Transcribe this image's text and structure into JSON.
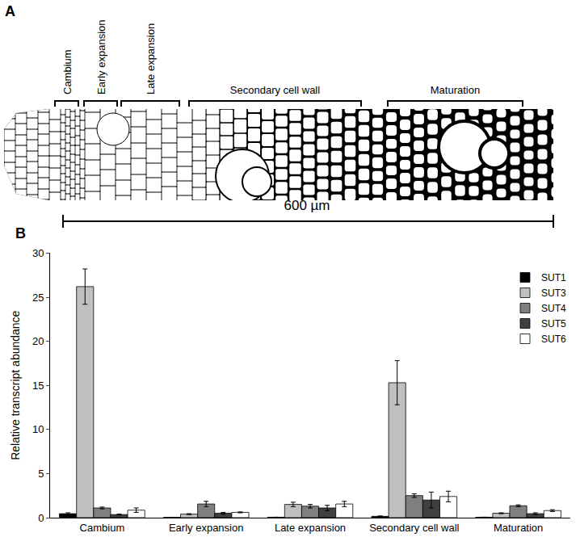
{
  "diagram": {
    "panel_label": "A",
    "zones": [
      "Cambium",
      "Early expansion",
      "Late expansion",
      "Secondary cell wall",
      "Maturation"
    ],
    "scale_bar": "600 µm"
  },
  "chart_data": {
    "panel_label": "B",
    "type": "bar",
    "categories": [
      "Cambium",
      "Early expansion",
      "Late expansion",
      "Secondary cell wall",
      "Maturation"
    ],
    "y_label": "Relative transcript abundance",
    "ylim": [
      0,
      30
    ],
    "yticks": [
      0,
      5,
      10,
      15,
      20,
      25,
      30
    ],
    "grid": false,
    "legend": "upper right",
    "series": [
      {
        "name": "SUT1",
        "color": "#000000",
        "values": [
          0.45,
          0.03,
          0.05,
          0.15,
          0.05
        ],
        "errors": [
          0.1,
          0,
          0,
          0.05,
          0
        ]
      },
      {
        "name": "SUT3",
        "color": "#c0c0c0",
        "values": [
          26.2,
          0.4,
          1.5,
          15.3,
          0.5
        ],
        "errors": [
          2.0,
          0.05,
          0.25,
          2.5,
          0.05
        ]
      },
      {
        "name": "SUT4",
        "color": "#7f7f7f",
        "values": [
          1.1,
          1.55,
          1.3,
          2.5,
          1.35
        ],
        "errors": [
          0.1,
          0.3,
          0.2,
          0.2,
          0.1
        ]
      },
      {
        "name": "SUT5",
        "color": "#404040",
        "values": [
          0.35,
          0.5,
          1.1,
          2.0,
          0.45
        ],
        "errors": [
          0.05,
          0.1,
          0.3,
          0.9,
          0.1
        ]
      },
      {
        "name": "SUT6",
        "color": "#ffffff",
        "values": [
          0.85,
          0.6,
          1.55,
          2.4,
          0.8
        ],
        "errors": [
          0.25,
          0.05,
          0.3,
          0.6,
          0.1
        ]
      }
    ]
  }
}
